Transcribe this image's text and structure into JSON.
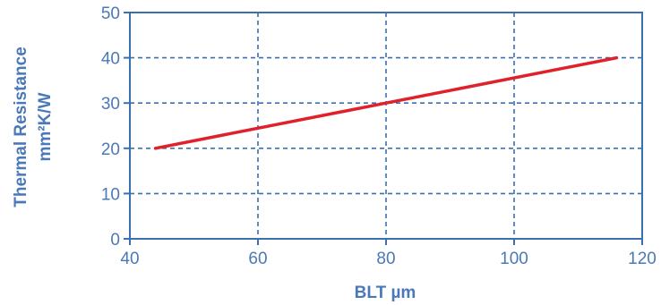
{
  "chart_data": {
    "type": "line",
    "title": "",
    "xlabel": "BLT µm",
    "ylabel_lines": [
      "Thermal Resistance",
      "mm²K/W"
    ],
    "xlim": [
      40,
      120
    ],
    "ylim": [
      0,
      50
    ],
    "x_ticks": [
      40,
      60,
      80,
      100,
      120
    ],
    "y_ticks": [
      0,
      10,
      20,
      30,
      40,
      50
    ],
    "grid": true,
    "legend": "none",
    "series": [
      {
        "x": [
          44,
          80,
          116
        ],
        "y": [
          20,
          30,
          40
        ],
        "color": "#e0202a"
      }
    ],
    "colors": {
      "axis": "#3a6fb0",
      "grid": "#3a6fb0",
      "text": "#4a78b8"
    }
  }
}
